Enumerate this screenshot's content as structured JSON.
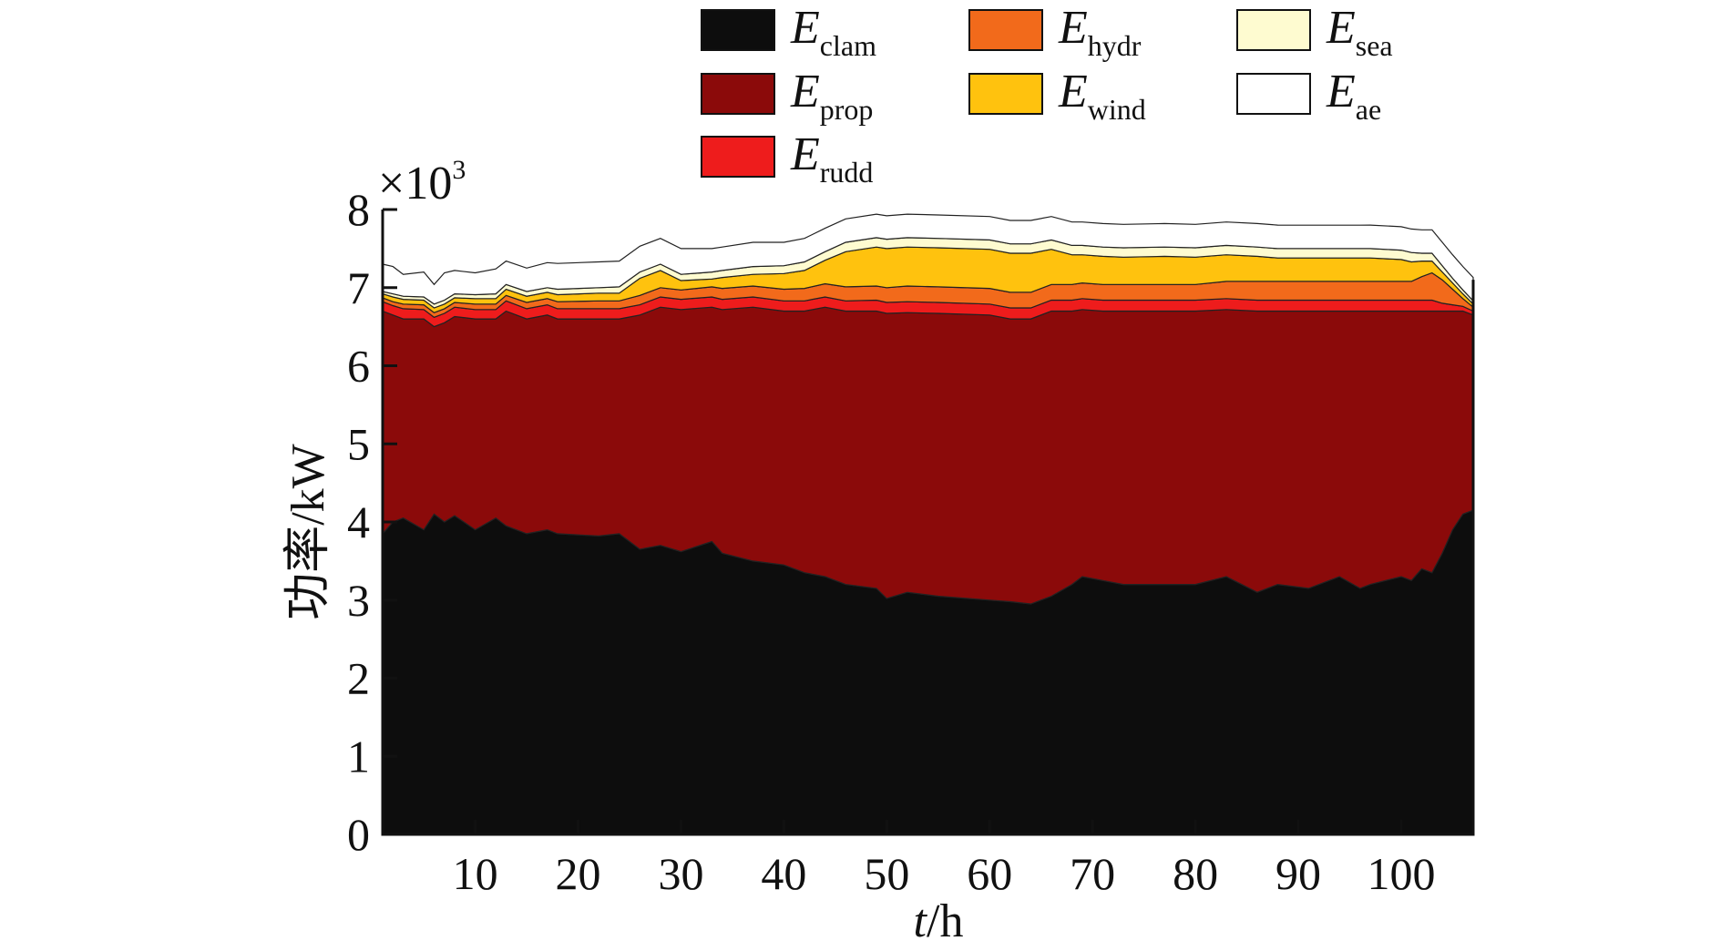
{
  "chart_data": {
    "type": "area",
    "stacked": true,
    "xlabel_italic": "t",
    "xlabel_rest": "/h",
    "ylabel": "功率/kW",
    "y_multiplier": "×10",
    "y_multiplier_exp": "3",
    "xlim": [
      1,
      107
    ],
    "ylim": [
      0,
      8
    ],
    "xticks": [
      10,
      20,
      30,
      40,
      50,
      60,
      70,
      80,
      90,
      100
    ],
    "yticks": [
      0,
      1,
      2,
      3,
      4,
      5,
      6,
      7,
      8
    ],
    "legend_position": "top",
    "x": [
      1,
      2,
      3,
      5,
      6,
      7,
      8,
      10,
      12,
      13,
      15,
      17,
      18,
      22,
      24,
      26,
      28,
      30,
      33,
      34,
      37,
      40,
      42,
      44,
      46,
      49,
      50,
      52,
      55,
      60,
      62,
      64,
      66,
      68,
      69,
      71,
      73,
      77,
      80,
      83,
      86,
      88,
      91,
      94,
      96,
      97,
      100,
      101,
      102,
      103,
      104,
      105,
      106,
      107
    ],
    "series": [
      {
        "name": "E",
        "sub": "clam",
        "color": "#0d0d0d",
        "values": [
          3.85,
          4.0,
          4.05,
          3.9,
          4.1,
          4.0,
          4.08,
          3.9,
          4.05,
          3.95,
          3.85,
          3.9,
          3.85,
          3.82,
          3.85,
          3.65,
          3.7,
          3.62,
          3.75,
          3.6,
          3.5,
          3.45,
          3.35,
          3.3,
          3.2,
          3.15,
          3.02,
          3.1,
          3.05,
          3.0,
          2.98,
          2.95,
          3.05,
          3.2,
          3.3,
          3.25,
          3.2,
          3.2,
          3.2,
          3.3,
          3.1,
          3.2,
          3.15,
          3.3,
          3.15,
          3.2,
          3.3,
          3.25,
          3.4,
          3.35,
          3.6,
          3.9,
          4.1,
          4.15
        ]
      },
      {
        "name": "E",
        "sub": "prop",
        "color": "#8b0a0a",
        "values": [
          2.85,
          2.65,
          2.55,
          2.7,
          2.4,
          2.55,
          2.55,
          2.7,
          2.55,
          2.75,
          2.75,
          2.75,
          2.75,
          2.78,
          2.75,
          3.0,
          3.05,
          3.1,
          3.0,
          3.12,
          3.25,
          3.25,
          3.35,
          3.45,
          3.5,
          3.55,
          3.65,
          3.58,
          3.62,
          3.65,
          3.62,
          3.65,
          3.65,
          3.5,
          3.42,
          3.45,
          3.5,
          3.5,
          3.5,
          3.42,
          3.6,
          3.5,
          3.55,
          3.4,
          3.55,
          3.5,
          3.4,
          3.45,
          3.3,
          3.35,
          3.1,
          2.8,
          2.6,
          2.5
        ]
      },
      {
        "name": "E",
        "sub": "rudd",
        "color": "#ee1c1c",
        "values": [
          0.12,
          0.12,
          0.13,
          0.12,
          0.12,
          0.12,
          0.12,
          0.12,
          0.12,
          0.13,
          0.13,
          0.13,
          0.13,
          0.13,
          0.13,
          0.13,
          0.13,
          0.13,
          0.13,
          0.13,
          0.13,
          0.13,
          0.13,
          0.13,
          0.13,
          0.14,
          0.14,
          0.14,
          0.14,
          0.14,
          0.14,
          0.14,
          0.14,
          0.14,
          0.14,
          0.14,
          0.14,
          0.14,
          0.14,
          0.14,
          0.14,
          0.14,
          0.14,
          0.14,
          0.14,
          0.14,
          0.14,
          0.14,
          0.14,
          0.14,
          0.1,
          0.08,
          0.06,
          0.05
        ]
      },
      {
        "name": "E",
        "sub": "hydr",
        "color": "#f26a1b",
        "values": [
          0.05,
          0.05,
          0.06,
          0.06,
          0.06,
          0.06,
          0.06,
          0.07,
          0.07,
          0.07,
          0.08,
          0.08,
          0.09,
          0.1,
          0.1,
          0.12,
          0.12,
          0.12,
          0.13,
          0.14,
          0.14,
          0.15,
          0.16,
          0.17,
          0.18,
          0.18,
          0.19,
          0.2,
          0.2,
          0.2,
          0.2,
          0.2,
          0.2,
          0.2,
          0.2,
          0.2,
          0.2,
          0.2,
          0.2,
          0.22,
          0.24,
          0.24,
          0.24,
          0.24,
          0.24,
          0.24,
          0.24,
          0.24,
          0.3,
          0.35,
          0.3,
          0.2,
          0.1,
          0.05
        ]
      },
      {
        "name": "E",
        "sub": "wind",
        "color": "#ffc20e",
        "values": [
          0.05,
          0.06,
          0.06,
          0.06,
          0.06,
          0.06,
          0.06,
          0.07,
          0.07,
          0.08,
          0.08,
          0.08,
          0.09,
          0.1,
          0.1,
          0.22,
          0.22,
          0.12,
          0.1,
          0.14,
          0.15,
          0.2,
          0.23,
          0.3,
          0.45,
          0.5,
          0.5,
          0.5,
          0.5,
          0.5,
          0.5,
          0.5,
          0.45,
          0.38,
          0.36,
          0.36,
          0.35,
          0.36,
          0.35,
          0.34,
          0.32,
          0.3,
          0.3,
          0.3,
          0.3,
          0.3,
          0.28,
          0.25,
          0.2,
          0.15,
          0.1,
          0.08,
          0.06,
          0.04
        ]
      },
      {
        "name": "E",
        "sub": "sea",
        "color": "#fefbd0",
        "values": [
          0.03,
          0.04,
          0.04,
          0.04,
          0.05,
          0.05,
          0.05,
          0.05,
          0.06,
          0.06,
          0.06,
          0.06,
          0.07,
          0.07,
          0.08,
          0.08,
          0.08,
          0.08,
          0.09,
          0.09,
          0.1,
          0.1,
          0.11,
          0.11,
          0.12,
          0.12,
          0.12,
          0.12,
          0.12,
          0.12,
          0.12,
          0.12,
          0.12,
          0.12,
          0.12,
          0.12,
          0.12,
          0.12,
          0.12,
          0.12,
          0.12,
          0.12,
          0.12,
          0.12,
          0.12,
          0.12,
          0.12,
          0.12,
          0.1,
          0.1,
          0.08,
          0.06,
          0.05,
          0.04
        ]
      },
      {
        "name": "E",
        "sub": "ae",
        "color": "#ffffff",
        "values": [
          0.35,
          0.35,
          0.28,
          0.32,
          0.25,
          0.35,
          0.3,
          0.28,
          0.32,
          0.3,
          0.3,
          0.32,
          0.33,
          0.33,
          0.33,
          0.33,
          0.33,
          0.33,
          0.3,
          0.3,
          0.31,
          0.3,
          0.3,
          0.3,
          0.3,
          0.3,
          0.3,
          0.3,
          0.3,
          0.3,
          0.3,
          0.3,
          0.3,
          0.3,
          0.3,
          0.3,
          0.3,
          0.3,
          0.3,
          0.3,
          0.3,
          0.3,
          0.3,
          0.3,
          0.3,
          0.3,
          0.3,
          0.3,
          0.3,
          0.3,
          0.3,
          0.3,
          0.3,
          0.3
        ]
      }
    ]
  }
}
